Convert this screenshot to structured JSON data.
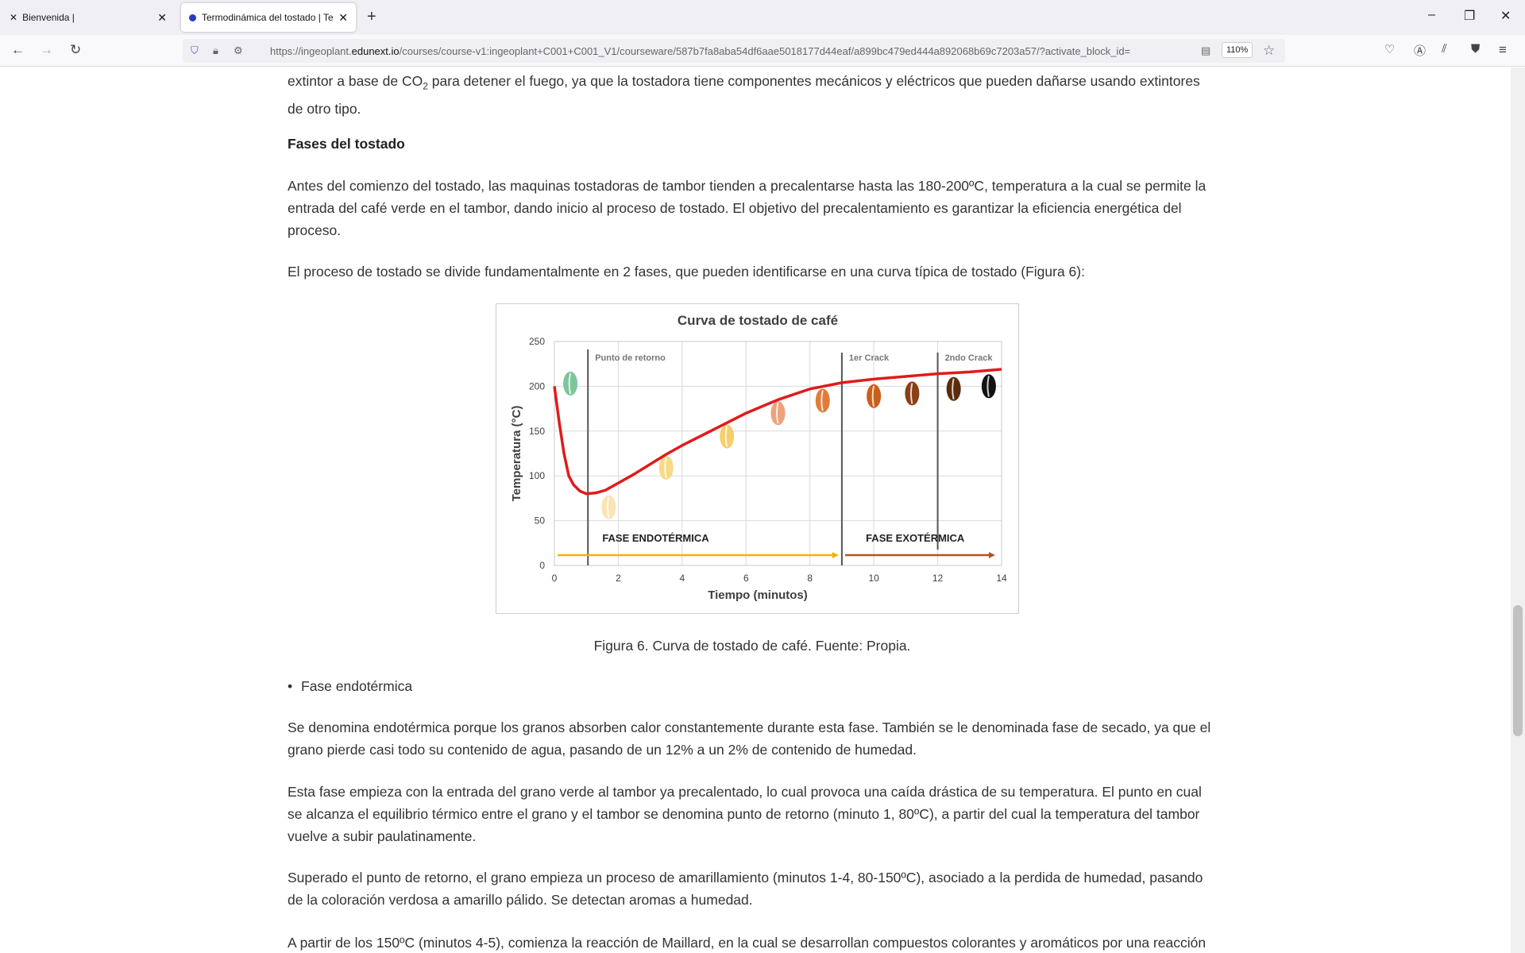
{
  "browser": {
    "tabs": [
      {
        "label": "Bienvenida |",
        "icon": "edunext-icon"
      },
      {
        "label": "Termodinámica del tostado | Te",
        "icon": "site-icon"
      }
    ],
    "url_prefix": "https://ingeoplant.",
    "url_domain": "edunext.io",
    "url_rest": "/courses/course-v1:ingeoplant+C001+C001_V1/courseware/587b7fa8aba54df6aae5018177d44eaf/a899bc479ed444a892068b69c7203a57/?activate_block_id=",
    "zoom": "110%"
  },
  "article": {
    "p0a": "extintor a base de CO",
    "p0sub": "2",
    "p0b": " para detener el fuego, ya que la tostadora tiene componentes mecánicos y eléctricos que pueden dañarse usando extintores de otro tipo.",
    "h_fases": "Fases del tostado",
    "p1": "Antes del comienzo del tostado, las maquinas tostadoras de tambor tienden a precalentarse hasta las 180-200ºC, temperatura a la cual se permite la entrada del café verde en el tambor, dando inicio al proceso de tostado. El objetivo del precalentamiento es garantizar la eficiencia energética del proceso.",
    "p2": "El proceso de tostado se divide fundamentalmente en 2 fases, que pueden identificarse en una curva típica de tostado (Figura 6):",
    "caption": "Figura 6. Curva de tostado de café. Fuente: Propia.",
    "bullet": "Fase endotérmica",
    "p3": "Se denomina endotérmica porque los granos absorben calor constantemente durante esta fase. También se le denominada fase de secado, ya que el grano pierde casi todo su contenido de agua, pasando de un 12% a un 2% de contenido de humedad.",
    "p4": "Esta fase empieza con la entrada del grano verde al tambor ya precalentado, lo cual provoca una caída drástica de su temperatura. El punto en cual se alcanza el equilibrio térmico entre el grano y el tambor se denomina punto de retorno (minuto 1, 80ºC), a partir del cual la temperatura del tambor vuelve a subir paulatinamente.",
    "p5": "Superado el punto de retorno, el grano empieza un proceso de amarillamiento (minutos 1-4, 80-150ºC), asociado a la perdida de humedad, pasando de la coloración verdosa a amarillo pálido. Se detectan aromas a humedad.",
    "p6": "A partir de los 150ºC (minutos 4-5), comienza la reacción de Maillard, en la cual se desarrollan compuestos colorantes y aromáticos por una reacción"
  },
  "chart_data": {
    "type": "line",
    "title": "Curva de tostado de café",
    "xlabel": "Tiempo (minutos)",
    "ylabel": "Temperatura (°C)",
    "xlim": [
      0,
      14
    ],
    "ylim": [
      0,
      250
    ],
    "xticks": [
      0,
      2,
      4,
      6,
      8,
      10,
      12,
      14
    ],
    "yticks": [
      0,
      50,
      100,
      150,
      200,
      250
    ],
    "grid": true,
    "series": [
      {
        "color": "#e01b1b",
        "x": [
          0,
          0.15,
          0.3,
          0.45,
          0.6,
          0.8,
          1,
          1.3,
          1.6,
          2,
          2.5,
          3,
          3.5,
          4,
          5,
          6,
          7,
          8,
          9,
          10,
          11,
          12,
          13,
          14
        ],
        "y": [
          200,
          160,
          125,
          100,
          90,
          83,
          80,
          81,
          84,
          92,
          102,
          113,
          124,
          134,
          152,
          170,
          185,
          197,
          204,
          208,
          211,
          214,
          216,
          219
        ]
      }
    ],
    "markers": [
      {
        "x": 1.05,
        "label": "Punto de retorno"
      },
      {
        "x": 9,
        "label": "1er Crack"
      },
      {
        "x": 12,
        "label": "2ndo Crack"
      }
    ],
    "phases": [
      {
        "label": "FASE ENDOTÉRMICA",
        "from": 0.1,
        "to": 8.9,
        "color": "#f0b400"
      },
      {
        "label": "FASE EXOTÉRMICA",
        "from": 9.1,
        "to": 13.8,
        "color": "#b5531e"
      }
    ],
    "beans": [
      {
        "x": 0.5,
        "y": 203,
        "color": "#7dc59a"
      },
      {
        "x": 1.7,
        "y": 65,
        "color": "#fbe4b4"
      },
      {
        "x": 3.5,
        "y": 109,
        "color": "#f8d985"
      },
      {
        "x": 5.4,
        "y": 144,
        "color": "#f6cf6c"
      },
      {
        "x": 7,
        "y": 170,
        "color": "#eda27c"
      },
      {
        "x": 8.4,
        "y": 184,
        "color": "#e07c3a"
      },
      {
        "x": 10,
        "y": 189,
        "color": "#c95f1b"
      },
      {
        "x": 11.2,
        "y": 192,
        "color": "#8a3f14"
      },
      {
        "x": 12.5,
        "y": 197,
        "color": "#5b2b0d"
      },
      {
        "x": 13.6,
        "y": 200,
        "color": "#121212"
      }
    ]
  }
}
